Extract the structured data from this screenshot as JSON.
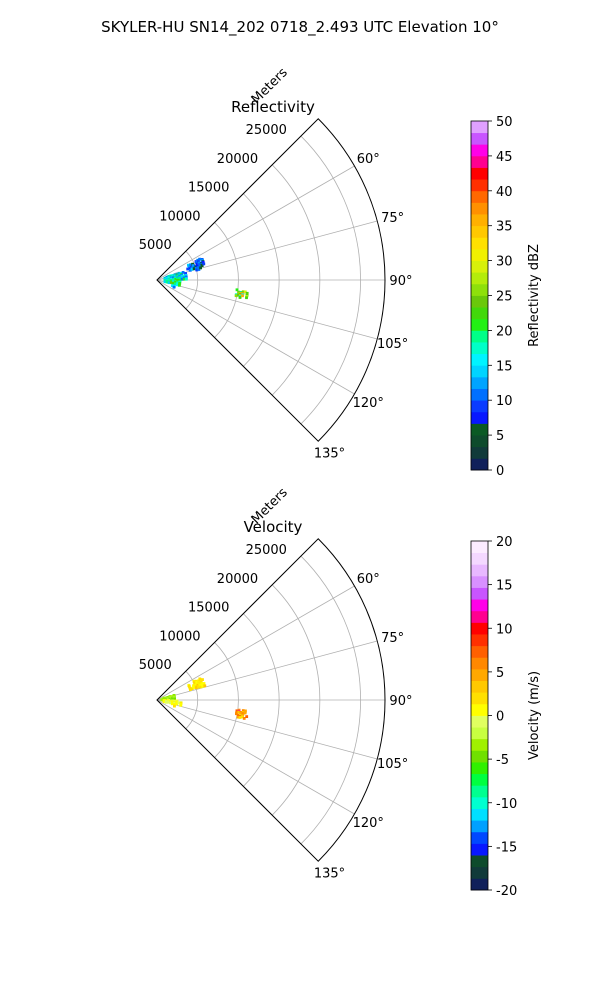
{
  "figure": {
    "title": "SKYLER-HU  SN14_202  0718_2.493 UTC Elevation 10°"
  },
  "chart_data": [
    {
      "type": "heatmap",
      "subtype": "polar-sector",
      "title": "Reflectivity",
      "range_label": "Meters",
      "r_ticks": [
        5000,
        10000,
        15000,
        20000,
        25000
      ],
      "r_max": 28000,
      "theta_range_deg": [
        45,
        135
      ],
      "theta_ticks": [
        60,
        75,
        90,
        105,
        120,
        135
      ],
      "theta_tick_labels": [
        "60°",
        "75°",
        "90°",
        "105°",
        "120°",
        "135°"
      ],
      "grid": true,
      "colorbar": {
        "label": "Reflectivity dBZ",
        "min": 0,
        "max": 50,
        "step": 2,
        "ticks": [
          0,
          5,
          10,
          15,
          20,
          25,
          30,
          35,
          40,
          45,
          50
        ],
        "colors": [
          "#10205a",
          "#113a3a",
          "#0e4b2c",
          "#0b5a24",
          "#0818ff",
          "#0a3cff",
          "#0070ff",
          "#00a4ff",
          "#00d4ff",
          "#00f4ff",
          "#00ffc8",
          "#00ff88",
          "#22f014",
          "#42d80a",
          "#6ac80a",
          "#8ee00a",
          "#b4ec0a",
          "#d8f00a",
          "#f0f000",
          "#ffe000",
          "#ffc800",
          "#ffb000",
          "#ff9000",
          "#ff6800",
          "#ff3000",
          "#ff0000",
          "#ff0090",
          "#ff00e8",
          "#c855ff",
          "#e0a0ff"
        ]
      },
      "clusters": [
        {
          "r": [
            1000,
            3600
          ],
          "theta": [
            73,
            90
          ],
          "value_mean": 15,
          "value_spread": 6,
          "density": 0.55
        },
        {
          "r": [
            1000,
            3000
          ],
          "theta": [
            90,
            104
          ],
          "value_mean": 19,
          "value_spread": 5,
          "density": 0.55
        },
        {
          "r": [
            4000,
            6300
          ],
          "theta": [
            64,
            76
          ],
          "value_mean": 10,
          "value_spread": 5,
          "density": 0.45
        },
        {
          "r": [
            2000,
            2500
          ],
          "theta": [
            108,
            113
          ],
          "value_mean": 14,
          "value_spread": 4,
          "density": 0.35
        },
        {
          "r": [
            9900,
            11200
          ],
          "theta": [
            97,
            102.5
          ],
          "value_mean": 22,
          "value_spread": 8,
          "density": 0.7,
          "core": {
            "r": [
              10400,
              10900
            ],
            "theta": [
              98.8,
              100.8
            ],
            "value": 37
          }
        }
      ]
    },
    {
      "type": "heatmap",
      "subtype": "polar-sector",
      "title": "Velocity",
      "range_label": "Meters",
      "r_ticks": [
        5000,
        10000,
        15000,
        20000,
        25000
      ],
      "r_max": 28000,
      "theta_range_deg": [
        45,
        135
      ],
      "theta_ticks": [
        60,
        75,
        90,
        105,
        120,
        135
      ],
      "theta_tick_labels": [
        "60°",
        "75°",
        "90°",
        "105°",
        "120°",
        "135°"
      ],
      "grid": true,
      "colorbar": {
        "label": "Velocity (m/s)",
        "min": -20,
        "max": 20,
        "step": 1.333333,
        "ticks": [
          -20,
          -15,
          -10,
          -5,
          0,
          5,
          10,
          15,
          20
        ],
        "colors": [
          "#10205a",
          "#113a3a",
          "#0e4b2c",
          "#0818ff",
          "#0048ff",
          "#00a0ff",
          "#00e0ff",
          "#00ffd0",
          "#00ff90",
          "#00ff40",
          "#30f000",
          "#70e000",
          "#a0f000",
          "#c8ff40",
          "#e0ff60",
          "#ffff00",
          "#ffe000",
          "#ffc800",
          "#ffa800",
          "#ff8800",
          "#ff6000",
          "#ff3000",
          "#ff0000",
          "#ff0090",
          "#ff00e8",
          "#c855ff",
          "#d890ff",
          "#e8b8ff",
          "#f4d8ff",
          "#fcecff"
        ]
      },
      "clusters": [
        {
          "r": [
            600,
            2400
          ],
          "theta": [
            75,
            92
          ],
          "value_mean": -3.5,
          "value_spread": 1.5,
          "density": 0.75
        },
        {
          "r": [
            900,
            3000
          ],
          "theta": [
            92,
            105
          ],
          "value_mean": 0.5,
          "value_spread": 1,
          "density": 0.55
        },
        {
          "r": [
            4300,
            6300
          ],
          "theta": [
            63,
            74
          ],
          "value_mean": 1.5,
          "value_spread": 1.5,
          "density": 0.5
        },
        {
          "r": [
            2000,
            2500
          ],
          "theta": [
            108,
            113
          ],
          "value_mean": 1,
          "value_spread": 1,
          "density": 0.35
        },
        {
          "r": [
            9900,
            11300
          ],
          "theta": [
            97,
            102.5
          ],
          "value_mean": 5,
          "value_spread": 3,
          "density": 0.7,
          "core": {
            "r": [
              10000,
              10300
            ],
            "theta": [
              97.2,
              98.2
            ],
            "value": 13
          }
        }
      ]
    }
  ]
}
